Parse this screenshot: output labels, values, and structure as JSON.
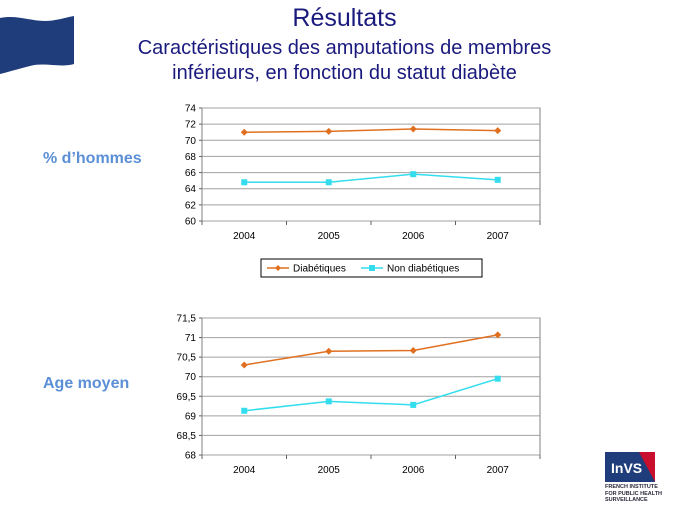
{
  "slide": {
    "title": "Résultats",
    "subtitle_line1": "Caractéristiques des amputations de membres",
    "subtitle_line2": "inférieurs, en fonction du statut diabète",
    "label_men": "% d’hommes",
    "label_age": "Age moyen"
  },
  "logo": {
    "text": "InVS",
    "line1": "FRENCH INSTITUTE",
    "line2": "FOR PUBLIC HEALTH",
    "line3": "SURVEILLANCE"
  },
  "colors": {
    "diabetic": "#e07020",
    "non_diabetic": "#33ddee",
    "title": "#1a1a7e",
    "plot_bg": "#ffffff",
    "grid": "#a0a0a0"
  },
  "chart_data": [
    {
      "type": "line",
      "categories": [
        "2004",
        "2005",
        "2006",
        "2007"
      ],
      "series": [
        {
          "name": "Diabétiques",
          "values": [
            71.0,
            71.1,
            71.4,
            71.2
          ]
        },
        {
          "name": "Non diabétiques",
          "values": [
            64.8,
            64.8,
            65.8,
            65.1
          ]
        }
      ],
      "ylim": [
        60,
        74
      ],
      "yticks": [
        "60",
        "62",
        "64",
        "66",
        "68",
        "70",
        "72",
        "74"
      ],
      "grid": true,
      "legend": "bottom"
    },
    {
      "type": "line",
      "categories": [
        "2004",
        "2005",
        "2006",
        "2007"
      ],
      "series": [
        {
          "name": "Diabétiques",
          "values": [
            70.3,
            70.65,
            70.67,
            71.07
          ]
        },
        {
          "name": "Non diabétiques",
          "values": [
            69.13,
            69.37,
            69.28,
            69.95
          ]
        }
      ],
      "ylim": [
        68,
        71.5
      ],
      "yticks": [
        "68",
        "68,5",
        "69",
        "69,5",
        "70",
        "70,5",
        "71",
        "71,5"
      ],
      "grid": true,
      "legend": "none"
    }
  ]
}
